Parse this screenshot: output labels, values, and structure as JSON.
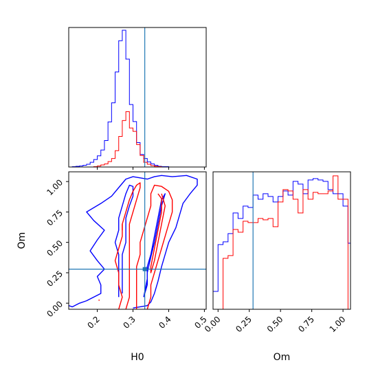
{
  "chart_data": {
    "type": "corner",
    "parameters": [
      "H0",
      "Om"
    ],
    "truth": {
      "H0": 0.333,
      "Om": 0.28
    },
    "colors": {
      "run_a": "#0000ff",
      "run_b": "#ff0000",
      "truth": "#1f77b4"
    },
    "panels": [
      {
        "id": "hist_H0",
        "type": "histogram",
        "xlim": [
          0.12,
          0.505
        ],
        "xticks": [
          0.2,
          0.3,
          0.4,
          0.5
        ],
        "tick_labels_shown": false,
        "bins": {
          "start": 0.12,
          "width": 0.01
        },
        "series": [
          {
            "color": "#0000ff",
            "counts": [
              0,
              1,
              2,
              3,
              5,
              8,
              14,
              22,
              33,
              50,
              78,
              133,
              189,
              280,
              372,
              403,
              318,
              184,
              134,
              72,
              37,
              25,
              15,
              9,
              5,
              2,
              1,
              1,
              0
            ]
          },
          {
            "color": "#ff0000",
            "counts": [
              0,
              0,
              0,
              0,
              0,
              0,
              0,
              1,
              3,
              6,
              9,
              16,
              25,
              48,
              90,
              137,
              163,
              115,
              105,
              66,
              34,
              14,
              8,
              4,
              2,
              1,
              0,
              0,
              0
            ]
          }
        ]
      },
      {
        "id": "hist_Om",
        "type": "histogram",
        "xlim": [
          -0.04,
          1.06
        ],
        "xticks": [
          0.0,
          0.25,
          0.5,
          0.75,
          1.0
        ],
        "xticklabels": [
          "0.00",
          "0.25",
          "0.50",
          "0.75",
          "1.00"
        ],
        "xlabel": "Om",
        "bins": {
          "start": -0.04,
          "width": 0.04
        },
        "series": [
          {
            "color": "#0000ff",
            "counts": [
              0.13,
              0.47,
              0.49,
              0.55,
              0.7,
              0.66,
              0.75,
              0.74,
              0.83,
              0.8,
              0.84,
              0.82,
              0.78,
              0.82,
              0.86,
              0.83,
              0.93,
              0.91,
              0.84,
              0.94,
              0.95,
              0.94,
              0.93,
              0.87,
              0.84,
              0.84,
              0.75,
              0.48,
              0.02
            ]
          },
          {
            "color": "#ff0000",
            "counts": [
              0,
              0,
              0.37,
              0.39,
              0.58,
              0.56,
              0.64,
              0.63,
              0.63,
              0.66,
              0.65,
              0.66,
              0.6,
              0.78,
              0.87,
              0.86,
              0.8,
              0.7,
              0.87,
              0.8,
              0.85,
              0.84,
              0.84,
              0.86,
              0.97,
              0.8,
              0.8,
              0,
              0
            ]
          }
        ]
      },
      {
        "id": "contour_H0_Om",
        "type": "contour",
        "xlim": [
          0.12,
          0.505
        ],
        "ylim": [
          -0.05,
          1.08
        ],
        "xticks": [
          0.2,
          0.3,
          0.4,
          0.5
        ],
        "xticklabels": [
          "0.2",
          "0.3",
          "0.4",
          "0.5"
        ],
        "yticks": [
          0.0,
          0.25,
          0.5,
          0.75,
          1.0
        ],
        "yticklabels": [
          "0.00",
          "0.25",
          "0.50",
          "0.75",
          "1.00"
        ],
        "xlabel": "H0",
        "ylabel": "Om",
        "contours": [
          {
            "color": "#0000ff",
            "points": [
              [
                0.12,
                -0.02
              ],
              [
                0.13,
                -0.03
              ],
              [
                0.15,
                0.0
              ],
              [
                0.17,
                0.02
              ],
              [
                0.21,
                0.08
              ],
              [
                0.21,
                0.15
              ],
              [
                0.2,
                0.22
              ],
              [
                0.22,
                0.28
              ],
              [
                0.2,
                0.35
              ],
              [
                0.18,
                0.43
              ],
              [
                0.2,
                0.52
              ],
              [
                0.22,
                0.6
              ],
              [
                0.19,
                0.68
              ],
              [
                0.17,
                0.75
              ],
              [
                0.21,
                0.82
              ],
              [
                0.24,
                0.88
              ],
              [
                0.26,
                0.95
              ],
              [
                0.28,
                1.02
              ],
              [
                0.3,
                1.04
              ],
              [
                0.32,
                1.03
              ],
              [
                0.34,
                1.02
              ],
              [
                0.36,
                1.04
              ],
              [
                0.38,
                1.05
              ],
              [
                0.41,
                1.04
              ],
              [
                0.45,
                1.05
              ],
              [
                0.48,
                1.02
              ],
              [
                0.48,
                0.97
              ],
              [
                0.46,
                0.9
              ],
              [
                0.44,
                0.82
              ],
              [
                0.43,
                0.72
              ],
              [
                0.42,
                0.62
              ],
              [
                0.4,
                0.5
              ],
              [
                0.39,
                0.4
              ],
              [
                0.38,
                0.3
              ],
              [
                0.37,
                0.18
              ],
              [
                0.36,
                0.08
              ],
              [
                0.35,
                0.01
              ],
              [
                0.34,
                -0.02
              ],
              [
                0.3,
                -0.04
              ]
            ]
          },
          {
            "color": "#0000ff",
            "points": [
              [
                0.27,
                0.08
              ],
              [
                0.27,
                0.2
              ],
              [
                0.27,
                0.3
              ],
              [
                0.27,
                0.4
              ],
              [
                0.28,
                0.5
              ],
              [
                0.28,
                0.6
              ],
              [
                0.28,
                0.7
              ],
              [
                0.29,
                0.8
              ],
              [
                0.3,
                0.88
              ],
              [
                0.3,
                0.96
              ],
              [
                0.29,
                0.97
              ],
              [
                0.28,
                0.9
              ],
              [
                0.27,
                0.8
              ],
              [
                0.26,
                0.7
              ],
              [
                0.26,
                0.6
              ],
              [
                0.25,
                0.5
              ],
              [
                0.26,
                0.4
              ],
              [
                0.26,
                0.3
              ],
              [
                0.26,
                0.2
              ],
              [
                0.26,
                0.1
              ],
              [
                0.26,
                0.05
              ]
            ]
          },
          {
            "color": "#0000ff",
            "points": [
              [
                0.33,
                0.05
              ],
              [
                0.34,
                0.2
              ],
              [
                0.34,
                0.3
              ],
              [
                0.35,
                0.4
              ],
              [
                0.36,
                0.55
              ],
              [
                0.37,
                0.7
              ],
              [
                0.38,
                0.85
              ],
              [
                0.39,
                0.9
              ],
              [
                0.38,
                0.8
              ],
              [
                0.37,
                0.65
              ],
              [
                0.36,
                0.5
              ],
              [
                0.35,
                0.38
              ],
              [
                0.34,
                0.25
              ],
              [
                0.34,
                0.15
              ],
              [
                0.33,
                0.05
              ]
            ]
          },
          {
            "color": "#ff0000",
            "points": [
              [
                0.26,
                -0.05
              ],
              [
                0.27,
                0.05
              ],
              [
                0.26,
                0.15
              ],
              [
                0.26,
                0.25
              ],
              [
                0.25,
                0.35
              ],
              [
                0.26,
                0.45
              ],
              [
                0.27,
                0.55
              ],
              [
                0.27,
                0.65
              ],
              [
                0.28,
                0.75
              ],
              [
                0.29,
                0.85
              ],
              [
                0.3,
                0.92
              ],
              [
                0.31,
                0.97
              ],
              [
                0.32,
                0.99
              ],
              [
                0.32,
                0.95
              ],
              [
                0.31,
                0.85
              ],
              [
                0.3,
                0.75
              ],
              [
                0.29,
                0.65
              ],
              [
                0.29,
                0.55
              ],
              [
                0.29,
                0.45
              ],
              [
                0.29,
                0.35
              ],
              [
                0.29,
                0.25
              ],
              [
                0.29,
                0.15
              ],
              [
                0.29,
                0.05
              ],
              [
                0.28,
                -0.05
              ]
            ]
          },
          {
            "color": "#ff0000",
            "points": [
              [
                0.34,
                -0.05
              ],
              [
                0.35,
                0.05
              ],
              [
                0.35,
                0.15
              ],
              [
                0.36,
                0.25
              ],
              [
                0.37,
                0.35
              ],
              [
                0.38,
                0.45
              ],
              [
                0.39,
                0.55
              ],
              [
                0.4,
                0.65
              ],
              [
                0.41,
                0.75
              ],
              [
                0.41,
                0.85
              ],
              [
                0.4,
                0.92
              ],
              [
                0.38,
                0.96
              ],
              [
                0.36,
                0.97
              ],
              [
                0.35,
                0.9
              ],
              [
                0.35,
                0.8
              ],
              [
                0.34,
                0.7
              ],
              [
                0.33,
                0.6
              ],
              [
                0.32,
                0.5
              ],
              [
                0.32,
                0.4
              ],
              [
                0.31,
                0.3
              ],
              [
                0.31,
                0.2
              ],
              [
                0.31,
                0.1
              ],
              [
                0.31,
                0.0
              ],
              [
                0.31,
                -0.05
              ]
            ]
          },
          {
            "color": "#ff0000",
            "points": [
              [
                0.37,
                0.9
              ],
              [
                0.38,
                0.86
              ],
              [
                0.38,
                0.75
              ],
              [
                0.37,
                0.6
              ],
              [
                0.36,
                0.45
              ],
              [
                0.35,
                0.3
              ],
              [
                0.35,
                0.25
              ],
              [
                0.36,
                0.35
              ],
              [
                0.37,
                0.5
              ],
              [
                0.38,
                0.65
              ],
              [
                0.39,
                0.8
              ],
              [
                0.38,
                0.9
              ]
            ]
          },
          {
            "color": "#ff0000",
            "points": [
              [
                0.205,
                0.02
              ],
              [
                0.205,
                0.03
              ]
            ]
          },
          {
            "color": "#ff0000",
            "points": [
              [
                0.27,
                0.6
              ],
              [
                0.27,
                0.65
              ]
            ]
          }
        ]
      }
    ]
  }
}
